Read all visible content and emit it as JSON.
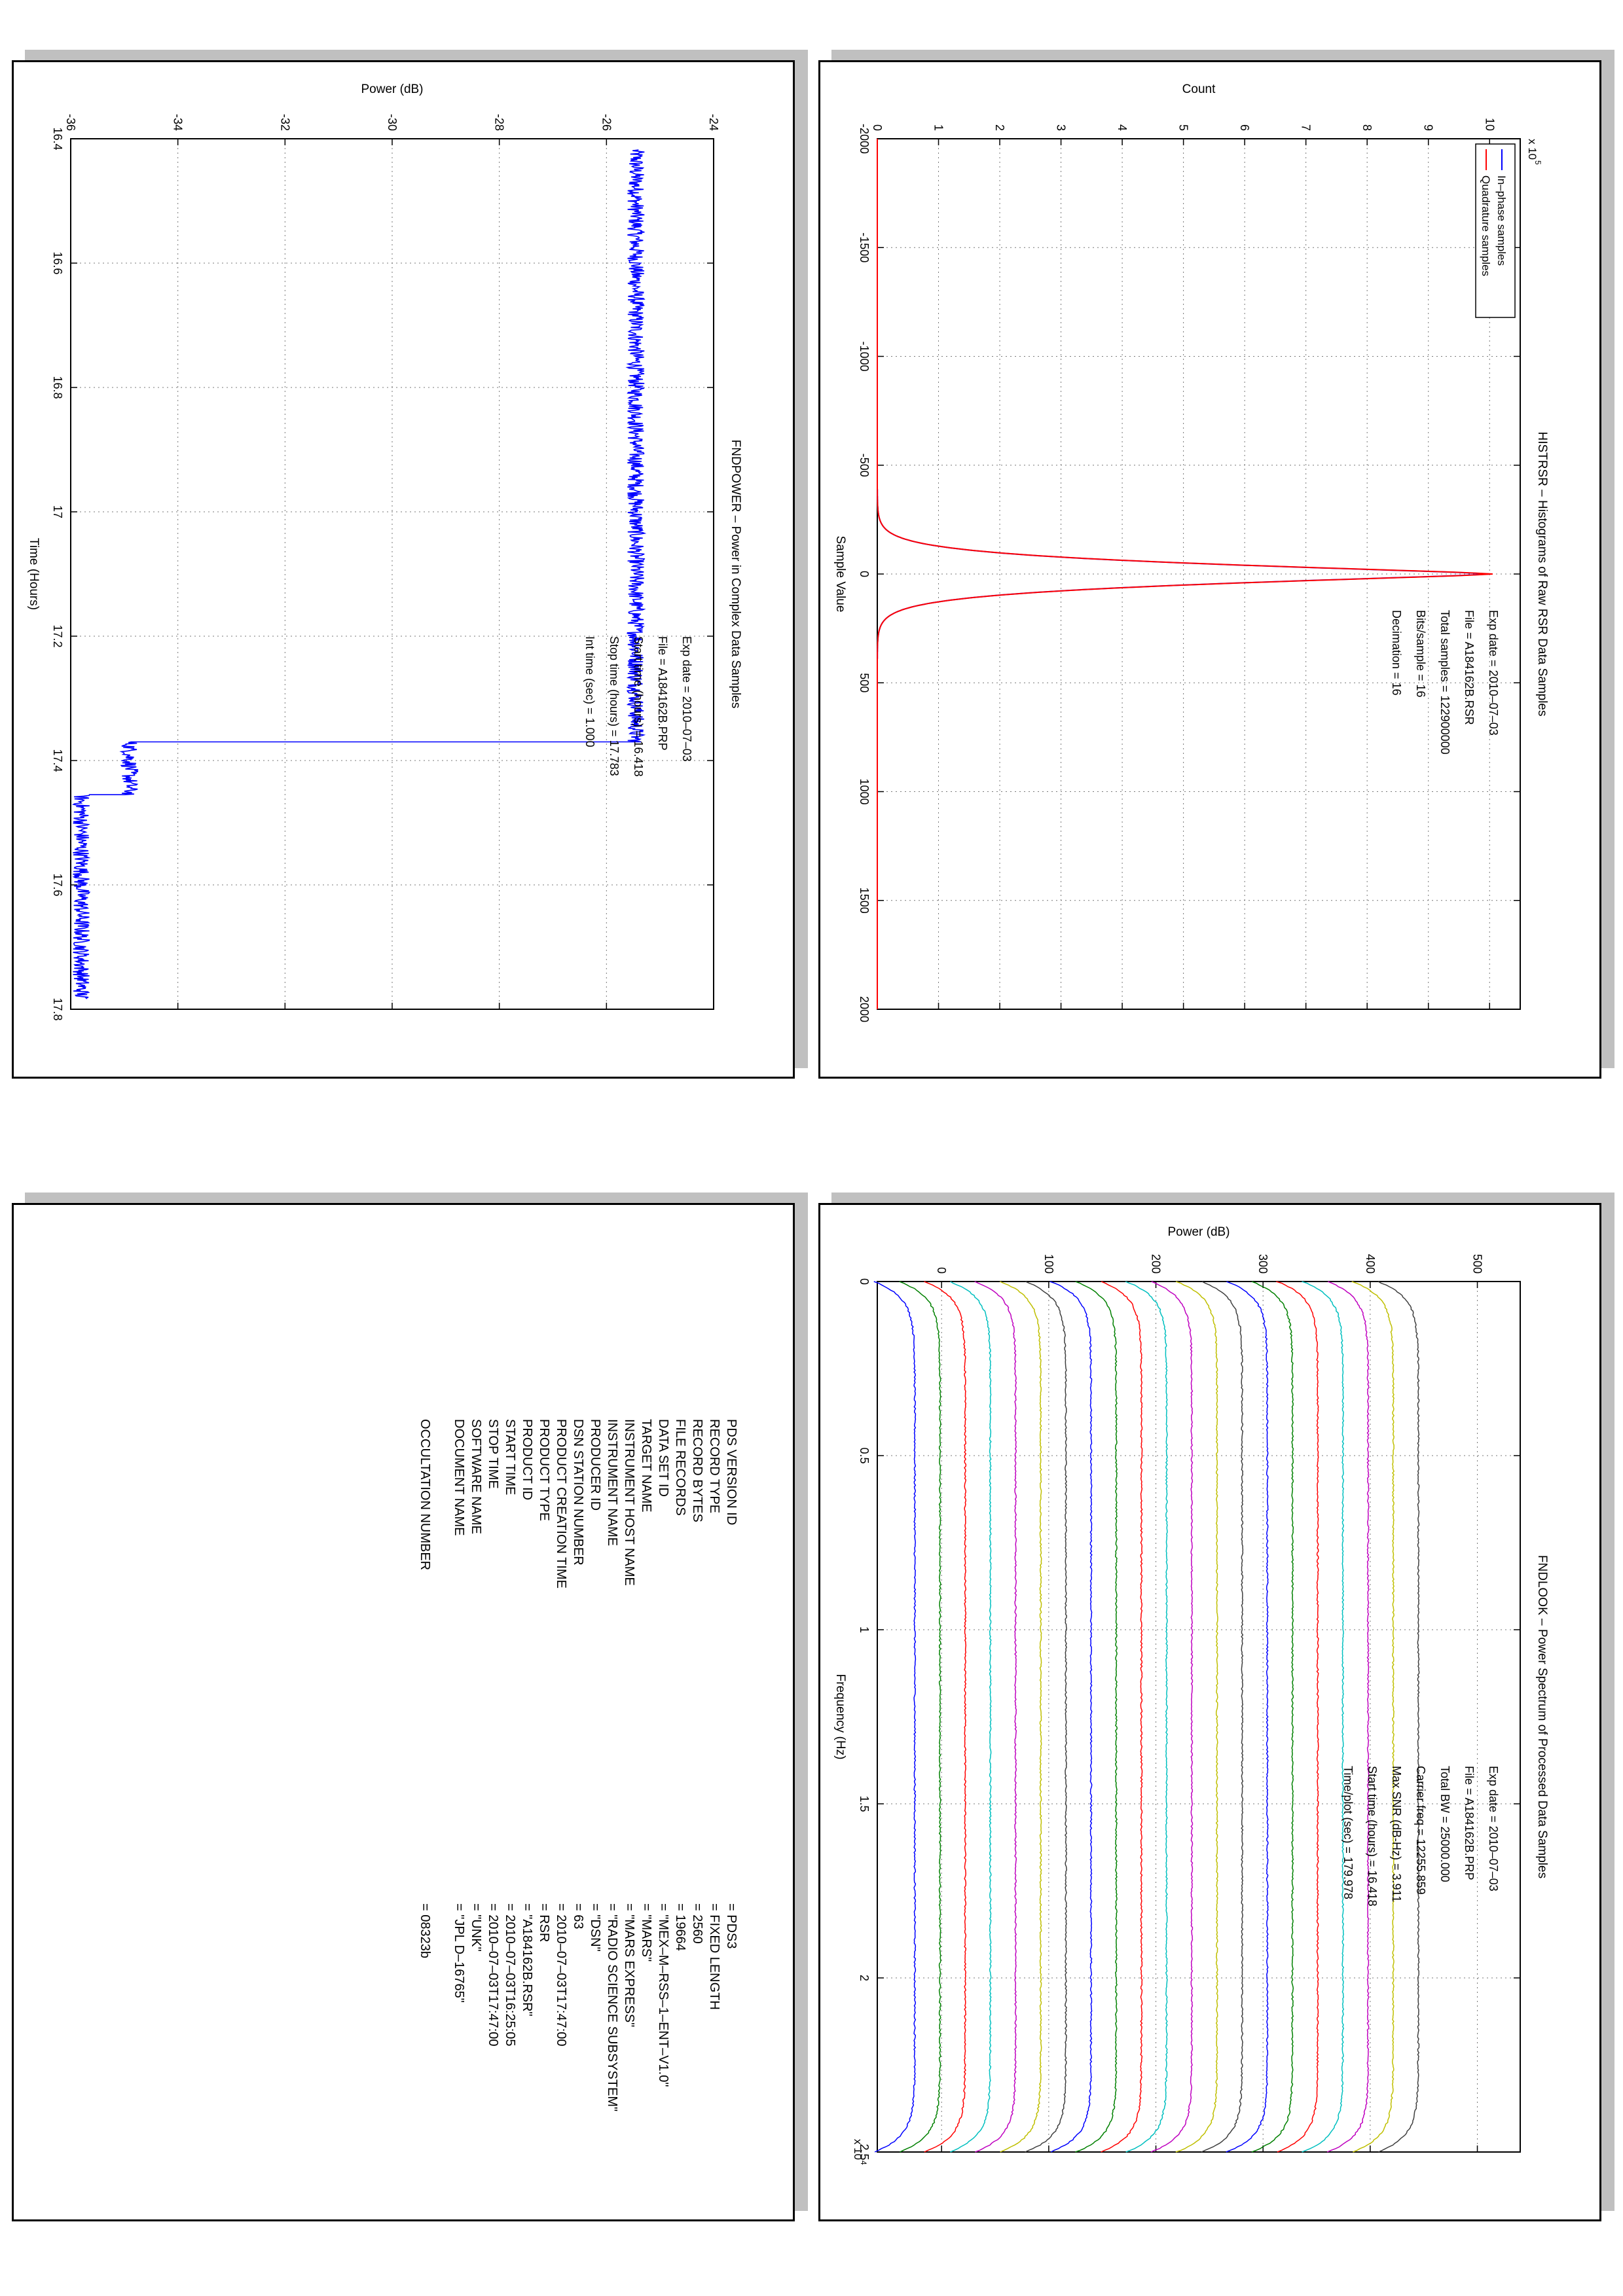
{
  "colors": {
    "blue": "#0000ff",
    "red": "#ff0000",
    "green": "#008000",
    "cyan": "#00bfbf",
    "magenta": "#bf00bf",
    "olive": "#bfbf00",
    "dark": "#3f3f3f",
    "shadow": "#c0c0c0"
  },
  "chart_data": [
    {
      "id": "histrsr",
      "type": "line",
      "title": "HISTRSR – Histograms of Raw RSR Data Samples",
      "xlabel": "Sample Value",
      "ylabel": "Count",
      "y_exponent": "x 10",
      "y_exponent_power": "5",
      "xlim": [
        -2000,
        2000
      ],
      "ylim": [
        0,
        10.5
      ],
      "x_ticks": [
        -2000,
        -1500,
        -1000,
        -500,
        0,
        500,
        1000,
        1500,
        2000
      ],
      "y_ticks": [
        0,
        1,
        2,
        3,
        4,
        5,
        6,
        7,
        8,
        9,
        10
      ],
      "grid": true,
      "legend": "top-left",
      "series": [
        {
          "name": "In–phase samples",
          "color": "blue",
          "peak_x": 0,
          "peak_y": 10.0,
          "sigma": 62
        },
        {
          "name": "Quadrature samples",
          "color": "red",
          "peak_x": 0,
          "peak_y": 10.05,
          "sigma": 62
        }
      ],
      "annotations": [
        "Exp date = 2010–07–03",
        "File = A184162B.RSR",
        "Total samples =  122900000",
        "Bits/sample    =       16",
        "Decimation   =       16"
      ]
    },
    {
      "id": "fndpower",
      "type": "line",
      "title": "FNDPOWER – Power in Complex Data Samples",
      "xlabel": "Time (Hours)",
      "ylabel": "Power (dB)",
      "xlim": [
        16.4,
        17.8
      ],
      "ylim": [
        -36,
        -24
      ],
      "x_ticks": [
        16.4,
        16.6,
        16.8,
        17,
        17.2,
        17.4,
        17.6,
        17.8
      ],
      "y_ticks": [
        -36,
        -34,
        -32,
        -30,
        -28,
        -26,
        -24
      ],
      "grid": true,
      "series": [
        {
          "name": "",
          "color": "blue",
          "segments": [
            {
              "x0": 16.418,
              "x1": 17.37,
              "level": -25.45
            },
            {
              "x0": 17.37,
              "x1": 17.455,
              "level": -34.9
            },
            {
              "x0": 17.455,
              "x1": 17.783,
              "level": -35.8
            }
          ]
        }
      ],
      "annotations": [
        "Exp date = 2010–07–03",
        "File = A184162B.PRP",
        "Start time (hours) = 16.418",
        "Stop time (hours) =  17.783",
        "Int time (sec) =      1.000"
      ]
    },
    {
      "id": "fndlook",
      "type": "line",
      "title": "FNDLOOK – Power Spectrum of Processed Data Samples",
      "xlabel": "Frequency (Hz)",
      "ylabel": "Power (dB)",
      "x_exponent": "x 10",
      "x_exponent_power": "4",
      "xlim": [
        0,
        2.5
      ],
      "ylim": [
        -60,
        540
      ],
      "x_ticks": [
        0,
        0.5,
        1,
        1.5,
        2,
        2.5
      ],
      "y_ticks": [
        0,
        100,
        200,
        300,
        400,
        500
      ],
      "grid": true,
      "series_count": 21,
      "series_offset_start": -25,
      "series_offset_step": 23.5,
      "series_color_cycle": [
        "blue",
        "green",
        "red",
        "cyan",
        "magenta",
        "olive",
        "dark"
      ],
      "annotations": [
        "Exp date = 2010–07–03",
        "File = A184162B.PRP",
        "Total BW =      25000.000",
        "Carrier freq =  12255.859",
        "Max SNR (dB-Hz) =      3.911",
        "Start time (hours) =  16.418",
        "Time/plot (sec) =    179.978"
      ]
    }
  ],
  "label_table": {
    "rows": [
      {
        "key": "PDS VERSION ID",
        "value": "= PDS3"
      },
      {
        "key": "RECORD TYPE",
        "value": "= FIXED LENGTH"
      },
      {
        "key": "RECORD BYTES",
        "value": "= 2560"
      },
      {
        "key": "FILE RECORDS",
        "value": "= 19664"
      },
      {
        "key": "DATA SET ID",
        "value": "= \"MEX–M–RSS–1–ENT–V1.0\""
      },
      {
        "key": "TARGET NAME",
        "value": "= \"MARS\""
      },
      {
        "key": "INSTRUMENT HOST NAME",
        "value": "= \"MARS EXPRESS\""
      },
      {
        "key": "INSTRUMENT NAME",
        "value": "= \"RADIO SCIENCE SUBSYSTEM\""
      },
      {
        "key": "PRODUCER ID",
        "value": "= \"DSN\""
      },
      {
        "key": "DSN STATION NUMBER",
        "value": "= 63"
      },
      {
        "key": "PRODUCT CREATION TIME",
        "value": "= 2010–07–03T17:47:00"
      },
      {
        "key": "PRODUCT TYPE",
        "value": "= RSR"
      },
      {
        "key": "PRODUCT ID",
        "value": "= \"A184162B.RSR\""
      },
      {
        "key": "START TIME",
        "value": "= 2010–07–03T16:25:05"
      },
      {
        "key": "STOP TIME",
        "value": "= 2010–07–03T17:47:00"
      },
      {
        "key": "SOFTWARE NAME",
        "value": "= \"UNK\""
      },
      {
        "key": "DOCUMENT NAME",
        "value": "= \"JPL D–16765\""
      },
      {
        "key": "",
        "value": ""
      },
      {
        "key": "OCCULTATION NUMBER",
        "value": "= 08323b"
      }
    ]
  }
}
